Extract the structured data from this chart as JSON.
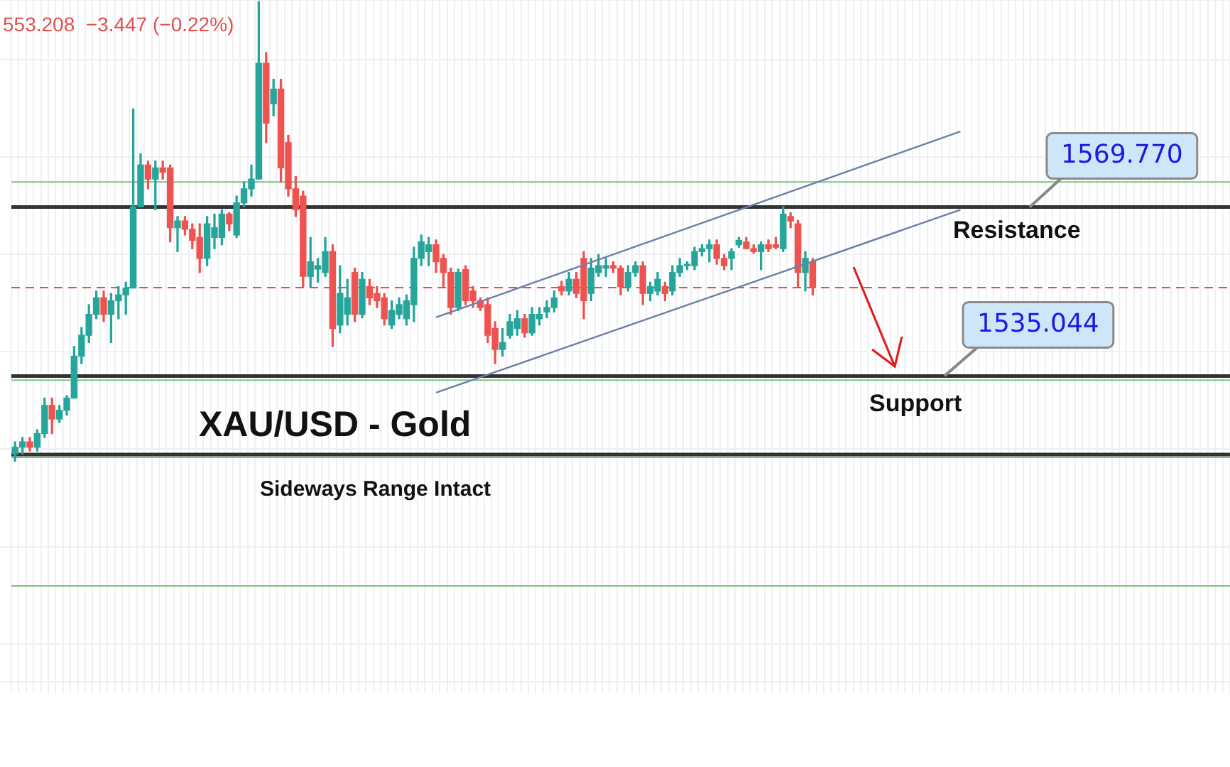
{
  "chart_data": {
    "type": "candlestick",
    "title": "XAU/USD - Gold",
    "subtitle": "Sideways Range Intact",
    "categories": [
      null,
      null,
      null,
      null,
      null,
      null,
      null,
      null,
      null,
      null,
      null,
      null,
      null,
      null,
      null,
      null,
      null,
      null,
      null,
      null,
      null,
      null,
      null,
      null,
      null,
      null,
      null,
      null,
      null,
      null,
      null,
      null,
      null,
      null,
      null,
      null,
      null,
      null,
      null,
      null,
      null,
      null,
      null,
      null,
      null,
      null,
      null,
      null,
      null,
      null,
      null,
      null,
      null,
      null,
      null,
      null,
      null,
      null,
      null,
      null,
      null,
      null,
      null,
      null,
      null,
      null,
      null,
      null,
      null,
      null,
      null,
      null,
      null,
      null,
      null,
      null,
      null,
      null,
      null,
      null,
      null,
      null,
      null,
      null,
      null,
      null,
      null,
      null,
      null,
      null,
      null,
      null,
      null,
      null,
      null,
      null,
      null,
      null,
      null,
      null,
      null,
      null,
      null,
      null,
      null,
      null,
      null,
      null,
      null,
      null,
      null,
      null,
      null,
      null,
      null,
      null,
      null,
      null,
      null,
      null,
      null,
      null,
      null,
      null,
      null,
      null,
      null,
      null,
      null,
      null,
      null,
      null,
      null,
      null,
      null,
      null,
      null,
      null,
      null,
      null,
      null,
      null,
      null,
      null,
      null,
      null,
      null,
      null,
      null,
      null,
      null,
      null,
      null,
      null,
      null,
      null,
      null,
      null,
      null,
      null,
      null,
      null,
      null,
      null,
      null
    ],
    "ohlc": [
      [
        1519.0,
        1521.5,
        1517.5,
        1520.4
      ],
      [
        1520.4,
        1522.4,
        1519.0,
        1521.5
      ],
      [
        1521.5,
        1522.4,
        1519.6,
        1520.4
      ],
      [
        1520.4,
        1524.0,
        1519.6,
        1523.2
      ],
      [
        1523.2,
        1530.5,
        1522.4,
        1529.0
      ],
      [
        1529.0,
        1530.5,
        1523.2,
        1526.2
      ],
      [
        1526.2,
        1529.0,
        1525.5,
        1528.0
      ],
      [
        1528.0,
        1531.0,
        1527.0,
        1530.5
      ],
      [
        1530.5,
        1541.1,
        1530.5,
        1539.1
      ],
      [
        1539.1,
        1545.0,
        1537.6,
        1543.4
      ],
      [
        1543.4,
        1549.7,
        1541.9,
        1547.7
      ],
      [
        1547.7,
        1552.5,
        1546.8,
        1551.1
      ],
      [
        1551.1,
        1552.5,
        1546.2,
        1547.7
      ],
      [
        1547.7,
        1552.0,
        1541.9,
        1550.5
      ],
      [
        1550.5,
        1553.4,
        1546.8,
        1551.7
      ],
      [
        1551.7,
        1554.3,
        1547.7,
        1553.1
      ],
      [
        1553.1,
        1589.9,
        1553.1,
        1569.8
      ],
      [
        1569.8,
        1580.7,
        1569.8,
        1578.4
      ],
      [
        1578.4,
        1579.2,
        1573.5,
        1575.5
      ],
      [
        1575.5,
        1579.2,
        1569.2,
        1577.8
      ],
      [
        1577.8,
        1579.2,
        1575.5,
        1576.9
      ],
      [
        1577.8,
        1578.4,
        1562.6,
        1565.5
      ],
      [
        1565.5,
        1567.8,
        1560.6,
        1566.9
      ],
      [
        1566.9,
        1567.8,
        1564.0,
        1565.2
      ],
      [
        1565.2,
        1566.3,
        1561.2,
        1562.9
      ],
      [
        1563.5,
        1566.3,
        1556.3,
        1559.2
      ],
      [
        1559.2,
        1567.8,
        1557.7,
        1566.3
      ],
      [
        1563.5,
        1568.3,
        1561.2,
        1565.5
      ],
      [
        1563.5,
        1569.2,
        1562.0,
        1568.3
      ],
      [
        1568.3,
        1568.6,
        1564.9,
        1566.3
      ],
      [
        1564.0,
        1572.0,
        1563.5,
        1570.6
      ],
      [
        1570.6,
        1574.9,
        1569.8,
        1573.5
      ],
      [
        1573.5,
        1578.4,
        1572.0,
        1575.5
      ],
      [
        1575.5,
        1612.0,
        1575.5,
        1599.3
      ],
      [
        1599.3,
        1601.5,
        1583.0,
        1587.0
      ],
      [
        1591.0,
        1596.0,
        1588.5,
        1594.0
      ],
      [
        1594.0,
        1596.0,
        1574.9,
        1577.8
      ],
      [
        1583.0,
        1584.5,
        1572.0,
        1573.5
      ],
      [
        1573.5,
        1576.0,
        1567.8,
        1569.2
      ],
      [
        1572.0,
        1573.0,
        1553.4,
        1555.5
      ],
      [
        1555.5,
        1563.5,
        1553.4,
        1558.5
      ],
      [
        1557.0,
        1559.2,
        1554.3,
        1557.7
      ],
      [
        1556.3,
        1563.5,
        1555.5,
        1560.6
      ],
      [
        1560.6,
        1562.0,
        1541.1,
        1544.8
      ],
      [
        1545.5,
        1557.7,
        1543.9,
        1552.0
      ],
      [
        1547.7,
        1554.9,
        1545.5,
        1551.1
      ],
      [
        1556.3,
        1557.2,
        1546.2,
        1547.7
      ],
      [
        1547.7,
        1556.3,
        1547.0,
        1554.9
      ],
      [
        1553.4,
        1554.9,
        1549.7,
        1551.1
      ],
      [
        1552.0,
        1553.4,
        1549.1,
        1550.5
      ],
      [
        1551.1,
        1552.0,
        1545.5,
        1546.8
      ],
      [
        1545.5,
        1550.5,
        1544.8,
        1548.5
      ],
      [
        1547.7,
        1551.1,
        1546.8,
        1549.7
      ],
      [
        1546.8,
        1551.7,
        1545.5,
        1550.5
      ],
      [
        1549.7,
        1561.5,
        1546.2,
        1559.2
      ],
      [
        1559.2,
        1564.0,
        1557.7,
        1562.6
      ],
      [
        1560.6,
        1563.5,
        1557.7,
        1562.0
      ],
      [
        1562.0,
        1563.0,
        1556.3,
        1558.5
      ],
      [
        1559.2,
        1560.0,
        1553.4,
        1556.3
      ],
      [
        1556.3,
        1557.2,
        1547.7,
        1549.1
      ],
      [
        1549.1,
        1557.0,
        1548.5,
        1556.3
      ],
      [
        1556.9,
        1557.7,
        1549.7,
        1550.5
      ],
      [
        1552.5,
        1553.4,
        1549.1,
        1550.5
      ],
      [
        1550.5,
        1551.1,
        1548.5,
        1549.1
      ],
      [
        1549.7,
        1551.1,
        1541.9,
        1543.4
      ],
      [
        1544.8,
        1546.2,
        1537.6,
        1540.5
      ],
      [
        1540.5,
        1544.8,
        1539.1,
        1541.9
      ],
      [
        1543.4,
        1547.7,
        1542.8,
        1546.2
      ],
      [
        1544.8,
        1548.5,
        1543.4,
        1546.8
      ],
      [
        1546.8,
        1547.7,
        1543.0,
        1543.9
      ],
      [
        1543.9,
        1549.1,
        1543.4,
        1547.7
      ],
      [
        1546.8,
        1549.1,
        1545.5,
        1547.7
      ],
      [
        1548.2,
        1550.5,
        1547.0,
        1549.1
      ],
      [
        1549.1,
        1552.5,
        1548.2,
        1551.1
      ],
      [
        1553.4,
        1554.5,
        1551.7,
        1552.5
      ],
      [
        1552.5,
        1556.3,
        1551.7,
        1554.9
      ],
      [
        1554.9,
        1556.3,
        1551.1,
        1552.0
      ],
      [
        1559.2,
        1560.6,
        1546.8,
        1550.5
      ],
      [
        1552.0,
        1559.2,
        1550.5,
        1557.2
      ],
      [
        1556.3,
        1560.0,
        1555.5,
        1557.7
      ],
      [
        1557.2,
        1559.2,
        1555.5,
        1557.7
      ],
      [
        1557.7,
        1558.5,
        1556.3,
        1557.2
      ],
      [
        1557.2,
        1557.7,
        1551.7,
        1553.4
      ],
      [
        1553.4,
        1557.7,
        1552.5,
        1556.3
      ],
      [
        1556.3,
        1558.5,
        1555.5,
        1557.7
      ],
      [
        1557.7,
        1558.5,
        1549.7,
        1552.0
      ],
      [
        1552.0,
        1554.3,
        1550.5,
        1553.4
      ],
      [
        1552.5,
        1556.3,
        1551.7,
        1554.9
      ],
      [
        1553.4,
        1554.3,
        1550.5,
        1552.0
      ],
      [
        1552.5,
        1557.7,
        1551.7,
        1556.3
      ],
      [
        1556.3,
        1559.2,
        1555.5,
        1557.7
      ],
      [
        1557.7,
        1558.5,
        1556.9,
        1558.0
      ],
      [
        1557.7,
        1561.5,
        1556.9,
        1560.6
      ],
      [
        1560.6,
        1562.0,
        1559.7,
        1561.2
      ],
      [
        1561.2,
        1563.0,
        1558.5,
        1562.0
      ],
      [
        1562.0,
        1563.0,
        1558.0,
        1559.2
      ],
      [
        1559.2,
        1560.0,
        1556.9,
        1557.7
      ],
      [
        1559.2,
        1561.2,
        1556.9,
        1560.6
      ],
      [
        1562.0,
        1563.5,
        1561.5,
        1562.9
      ],
      [
        1562.6,
        1563.5,
        1561.2,
        1561.2
      ],
      [
        1561.2,
        1562.0,
        1560.3,
        1560.6
      ],
      [
        1560.6,
        1562.6,
        1556.9,
        1562.0
      ],
      [
        1562.0,
        1563.0,
        1560.6,
        1561.2
      ],
      [
        1562.0,
        1563.5,
        1561.2,
        1561.5
      ],
      [
        1561.2,
        1569.8,
        1560.6,
        1568.3
      ],
      [
        1567.8,
        1568.6,
        1565.5,
        1566.9
      ],
      [
        1566.3,
        1567.0,
        1553.4,
        1556.3
      ],
      [
        1556.3,
        1560.6,
        1552.5,
        1559.2
      ],
      [
        1558.5,
        1559.2,
        1551.7,
        1553.2
      ],
      null,
      null,
      null,
      null,
      null,
      null,
      null,
      null,
      null,
      null,
      null,
      null,
      null,
      null,
      null,
      null,
      null,
      null,
      null,
      null,
      null,
      null,
      null,
      null,
      null,
      null,
      null,
      null,
      null,
      null,
      null,
      null,
      null,
      null,
      null,
      null,
      null,
      null,
      null,
      null,
      null,
      null,
      null,
      null,
      null,
      null,
      null,
      null,
      null,
      null,
      null,
      null,
      null,
      null,
      null,
      null
    ],
    "colors": [
      "#26a69a",
      "#26a69a",
      "#ef5350",
      "#26a69a",
      "#26a69a",
      "#ef5350",
      "#26a69a",
      "#26a69a",
      "#26a69a",
      "#26a69a",
      "#26a69a",
      "#26a69a",
      "#ef5350",
      "#26a69a",
      "#26a69a",
      "#26a69a",
      "#26a69a",
      "#26a69a",
      "#ef5350",
      "#26a69a",
      "#ef5350",
      "#ef5350",
      "#26a69a",
      "#ef5350",
      "#ef5350",
      "#ef5350",
      "#26a69a",
      "#26a69a",
      "#26a69a",
      "#ef5350",
      "#26a69a",
      "#26a69a",
      "#26a69a",
      "#26a69a",
      "#ef5350",
      "#26a69a",
      "#ef5350",
      "#ef5350",
      "#ef5350",
      "#ef5350",
      "#26a69a",
      "#26a69a",
      "#26a69a",
      "#ef5350",
      "#26a69a",
      "#26a69a",
      "#ef5350",
      "#26a69a",
      "#ef5350",
      "#ef5350",
      "#ef5350",
      "#26a69a",
      "#26a69a",
      "#26a69a",
      "#26a69a",
      "#26a69a",
      "#26a69a",
      "#ef5350",
      "#ef5350",
      "#ef5350",
      "#26a69a",
      "#ef5350",
      "#ef5350",
      "#ef5350",
      "#ef5350",
      "#ef5350",
      "#26a69a",
      "#26a69a",
      "#26a69a",
      "#ef5350",
      "#26a69a",
      "#26a69a",
      "#26a69a",
      "#26a69a",
      "#ef5350",
      "#26a69a",
      "#ef5350",
      "#ef5350",
      "#26a69a",
      "#26a69a",
      "#26a69a",
      "#ef5350",
      "#ef5350",
      "#26a69a",
      "#26a69a",
      "#ef5350",
      "#26a69a",
      "#26a69a",
      "#ef5350",
      "#26a69a",
      "#26a69a",
      "#26a69a",
      "#26a69a",
      "#26a69a",
      "#26a69a",
      "#ef5350",
      "#ef5350",
      "#26a69a",
      "#26a69a",
      "#ef5350",
      "#ef5350",
      "#26a69a",
      "#ef5350",
      "#ef5350",
      "#26a69a",
      "#ef5350",
      "#ef5350",
      "#26a69a",
      "#ef5350",
      null,
      null,
      null,
      null,
      null,
      null,
      null,
      null,
      null,
      null,
      null,
      null,
      null,
      null,
      null,
      null,
      null,
      null,
      null,
      null,
      null,
      null,
      null,
      null,
      null,
      null,
      null,
      null,
      null,
      null,
      null,
      null,
      null,
      null,
      null,
      null,
      null,
      null,
      null,
      null,
      null,
      null,
      null,
      null,
      null,
      null,
      null,
      null,
      null,
      null,
      null,
      null,
      null,
      null,
      null,
      null
    ],
    "series": [
      {
        "type": "line",
        "color": "#6a7fa8",
        "values": [
          null,
          null,
          null,
          null,
          null,
          null,
          null,
          null,
          null,
          null,
          null,
          null,
          null,
          null,
          null,
          null,
          null,
          null,
          null,
          null,
          null,
          null,
          null,
          null,
          null,
          null,
          null,
          null,
          null,
          null,
          null,
          null,
          null,
          null,
          null,
          null,
          null,
          null,
          null,
          null,
          null,
          null,
          null,
          null,
          null,
          null,
          null,
          null,
          null,
          null,
          null,
          null,
          null,
          null,
          null,
          null,
          null,
          1547.1,
          null,
          null,
          null,
          null,
          null,
          null,
          null,
          null,
          null,
          null,
          null,
          null,
          null,
          null,
          null,
          null,
          null,
          null,
          null,
          null,
          null,
          null,
          null,
          null,
          null,
          null,
          null,
          null,
          null,
          null,
          null,
          null,
          null,
          null,
          null,
          null,
          null,
          null,
          null,
          null,
          null,
          null,
          null,
          null,
          null,
          null,
          null,
          null,
          null,
          null,
          null,
          null,
          null,
          null,
          null,
          null,
          null,
          null,
          null,
          null,
          null,
          null,
          null,
          null,
          null,
          null,
          null,
          null,
          null,
          null,
          1585.3,
          null,
          null,
          null,
          null,
          null,
          null,
          null,
          null,
          null,
          null,
          null,
          null,
          null,
          null,
          null,
          null,
          null,
          null,
          null,
          null,
          null,
          null,
          null,
          null,
          null,
          null,
          null,
          null,
          null,
          null,
          null,
          null,
          null,
          null,
          null,
          null
        ]
      },
      {
        "type": "line",
        "color": "#6a7fa8",
        "values": [
          null,
          null,
          null,
          null,
          null,
          null,
          null,
          null,
          null,
          null,
          null,
          null,
          null,
          null,
          null,
          null,
          null,
          null,
          null,
          null,
          null,
          null,
          null,
          null,
          null,
          null,
          null,
          null,
          null,
          null,
          null,
          null,
          null,
          null,
          null,
          null,
          null,
          null,
          null,
          null,
          null,
          null,
          null,
          null,
          null,
          null,
          null,
          null,
          null,
          null,
          null,
          null,
          null,
          null,
          null,
          null,
          null,
          1531.6,
          null,
          null,
          null,
          null,
          null,
          null,
          null,
          null,
          null,
          null,
          null,
          null,
          null,
          null,
          null,
          null,
          null,
          null,
          null,
          null,
          null,
          null,
          null,
          null,
          null,
          null,
          null,
          null,
          null,
          null,
          null,
          null,
          null,
          null,
          null,
          null,
          null,
          null,
          null,
          null,
          null,
          null,
          null,
          null,
          null,
          null,
          null,
          null,
          null,
          null,
          null,
          null,
          null,
          null,
          null,
          null,
          null,
          null,
          null,
          null,
          null,
          null,
          null,
          null,
          null,
          null,
          null,
          null,
          null,
          null,
          1569.2,
          null,
          null,
          null,
          null,
          null,
          null,
          null,
          null,
          null,
          null,
          null,
          null,
          null,
          null,
          null,
          null,
          null,
          null,
          null,
          null,
          null,
          null,
          null,
          null,
          null,
          null,
          null,
          null,
          null,
          null,
          null,
          null,
          null,
          null,
          null,
          null
        ]
      }
    ],
    "ylim": [
      1472.2,
      1612.3
    ],
    "ref_lines": [
      {
        "axis": "y",
        "value": 1574.9,
        "color": "#7cc47c"
      },
      {
        "axis": "y",
        "value": 1569.77,
        "label": "1569.770",
        "color": "#333333"
      },
      {
        "axis": "y",
        "value": 1553.208,
        "color": "#e05050",
        "line_style": "dashed"
      },
      {
        "axis": "y",
        "value": 1535.044,
        "label": "1535.044",
        "color": "#333333"
      },
      {
        "axis": "y",
        "value": 1534.2,
        "color": "#7cc47c"
      },
      {
        "axis": "y",
        "value": 1518.9,
        "color": "#333333"
      },
      {
        "axis": "y",
        "value": 1518.3,
        "color": "#7cc47c"
      },
      {
        "axis": "y",
        "value": 1491.9,
        "color": "#7cc47c"
      }
    ],
    "annotations": [
      "553.208  −3.447 (−0.22%)",
      "Resistance",
      "Support"
    ],
    "grid": true,
    "legend": false,
    "tick_labels": false,
    "marker": "none"
  }
}
